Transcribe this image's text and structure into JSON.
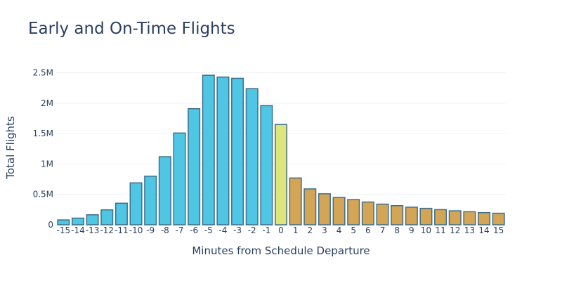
{
  "chart_data": {
    "type": "bar",
    "title": "Early and On-Time Flights",
    "xlabel": "Minutes from Schedule Departure",
    "ylabel": "Total Flights",
    "categories": [
      "-15",
      "-14",
      "-13",
      "-12",
      "-11",
      "-10",
      "-9",
      "-8",
      "-7",
      "-6",
      "-5",
      "-4",
      "-3",
      "-2",
      "-1",
      "0",
      "1",
      "2",
      "3",
      "4",
      "5",
      "6",
      "7",
      "8",
      "9",
      "10",
      "11",
      "12",
      "13",
      "14",
      "15"
    ],
    "values": [
      80000,
      110000,
      165000,
      245000,
      355000,
      690000,
      800000,
      1120000,
      1510000,
      1910000,
      2460000,
      2430000,
      2410000,
      2240000,
      1960000,
      1650000,
      770000,
      590000,
      510000,
      450000,
      415000,
      375000,
      340000,
      315000,
      290000,
      270000,
      250000,
      230000,
      215000,
      200000,
      190000
    ],
    "colors": {
      "early": "#4fc6e3",
      "on_time": "#dde47a",
      "late": "#d4a555",
      "outline": "#3e6f8c",
      "grid": "#eef2f7"
    },
    "ylim": [
      0,
      2600000
    ],
    "yticks": [
      0,
      500000,
      1000000,
      1500000,
      2000000,
      2500000
    ],
    "ytick_labels": [
      "0",
      "0.5M",
      "1M",
      "1.5M",
      "2M",
      "2.5M"
    ],
    "grid": true,
    "legend": "none"
  }
}
